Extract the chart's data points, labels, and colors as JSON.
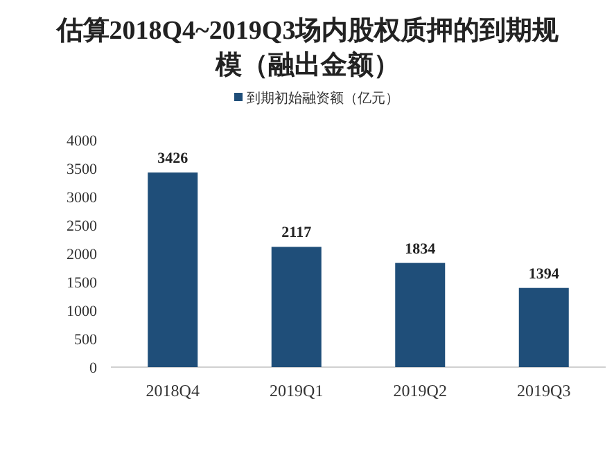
{
  "chart_data": {
    "type": "bar",
    "title": "估算2018Q4~2019Q3场内股权质押的到期规模（融出金额）",
    "categories": [
      "2018Q4",
      "2019Q1",
      "2019Q2",
      "2019Q3"
    ],
    "series": [
      {
        "name": "到期初始融资额（亿元）",
        "color": "#1f4e79",
        "values": [
          3426,
          2117,
          1834,
          1394
        ]
      }
    ],
    "ylim": [
      0,
      4000
    ],
    "yticks": [
      0,
      500,
      1000,
      1500,
      2000,
      2500,
      3000,
      3500,
      4000
    ],
    "data_labels": true,
    "grid": false,
    "legend": "top"
  }
}
